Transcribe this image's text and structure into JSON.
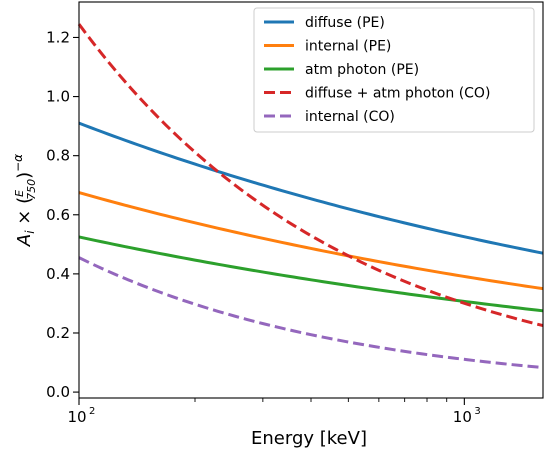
{
  "chart_data": {
    "type": "line",
    "xlabel": "Energy [keV]",
    "ylabel": "A_i × (E/750)^−α",
    "x_scale": "log",
    "xlim": [
      100,
      1600
    ],
    "ylim": [
      -0.02,
      1.32
    ],
    "x_major_ticks": [
      100,
      1000
    ],
    "x_tick_labels": [
      "10",
      "10"
    ],
    "x_tick_exponents": [
      "2",
      "3"
    ],
    "y_ticks": [
      0.0,
      0.2,
      0.4,
      0.6,
      0.8,
      1.0,
      1.2
    ],
    "y_tick_labels": [
      "0.0",
      "0.2",
      "0.4",
      "0.6",
      "0.8",
      "1.0",
      "1.2"
    ],
    "grid": false,
    "legend_position": "top-right",
    "series": [
      {
        "name": "diffuse (PE)",
        "color": "#1f77b4",
        "style": "solid",
        "x": [
          100,
          1600
        ],
        "y": [
          0.91,
          0.47
        ]
      },
      {
        "name": "internal (PE)",
        "color": "#ff7f0e",
        "style": "solid",
        "x": [
          100,
          1600
        ],
        "y": [
          0.675,
          0.35
        ]
      },
      {
        "name": "atm photon (PE)",
        "color": "#2ca02c",
        "style": "solid",
        "x": [
          100,
          1600
        ],
        "y": [
          0.525,
          0.275
        ]
      },
      {
        "name": "diffuse + atm photon (CO)",
        "color": "#d62728",
        "style": "dashed",
        "x": [
          100,
          1600
        ],
        "y": [
          1.245,
          0.225
        ]
      },
      {
        "name": "internal (CO)",
        "color": "#9467bd",
        "style": "dashed",
        "x": [
          100,
          1600
        ],
        "y": [
          0.455,
          0.083
        ]
      }
    ]
  }
}
